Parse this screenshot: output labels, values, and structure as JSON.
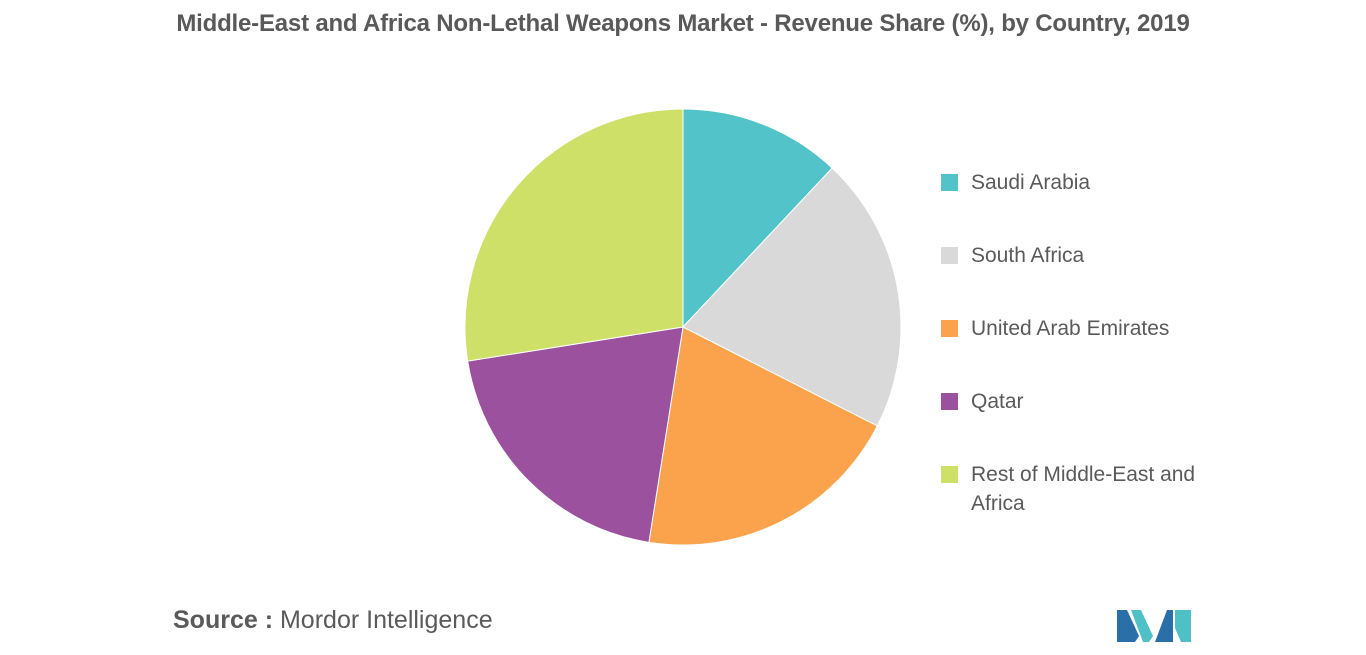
{
  "chart_data": {
    "type": "pie",
    "title": "Middle-East and Africa Non-Lethal Weapons Market - Revenue Share (%), by Country, 2019",
    "start_angle_deg": 0,
    "direction": "clockwise",
    "slices": [
      {
        "label": "Saudi Arabia",
        "value": 12,
        "color": "#52c4c9"
      },
      {
        "label": "South Africa",
        "value": 20.5,
        "color": "#d9d9d9"
      },
      {
        "label": "United Arab Emirates",
        "value": 20,
        "color": "#fba34c"
      },
      {
        "label": "Qatar",
        "value": 20,
        "color": "#9b519e"
      },
      {
        "label": "Rest of Middle-East and Africa",
        "value": 27.5,
        "color": "#cfe069"
      }
    ],
    "legend_position": "right"
  },
  "source": {
    "prefix": "Source :",
    "text": "Mordor Intelligence"
  },
  "logo": {
    "icon": "mordor-intelligence-logo-icon",
    "colors": [
      "#2a6fa8",
      "#4fc1c6"
    ]
  }
}
